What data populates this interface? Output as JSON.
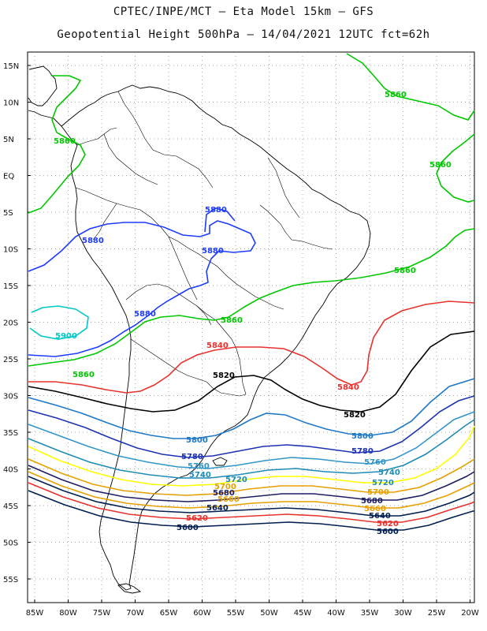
{
  "header": {
    "line1": "CPTEC/INPE/MCT –  Eta Model 15km – GFS",
    "line2": "Geopotential Height 500hPa – 14/04/2021 12UTC fct=62h"
  },
  "axes": {
    "lat_ticks": [
      "15N",
      "10N",
      "5N",
      "EQ",
      "5S",
      "10S",
      "15S",
      "20S",
      "25S",
      "30S",
      "35S",
      "40S",
      "45S",
      "50S",
      "55S"
    ],
    "lon_ticks": [
      "85W",
      "80W",
      "75W",
      "70W",
      "65W",
      "60W",
      "55W",
      "50W",
      "45W",
      "40W",
      "35W",
      "30W",
      "25W",
      "20W"
    ]
  },
  "colors": {
    "c5900": "#00c8c8",
    "c5880": "#1e3cff",
    "c5860": "#00c800",
    "c5840": "#e8322e",
    "c5820": "#000000",
    "c5800": "#1e78c8",
    "c5780": "#1e32b4",
    "c5760": "#3296c8",
    "c5740": "#1e8cb4",
    "c5720": "#ffff00",
    "c5700": "#e6a000",
    "c5680": "#1e1e64",
    "c5660": "#e6a000",
    "c5640": "#001e50",
    "c5620": "#e8322e",
    "c5600": "#001e50"
  },
  "contour_labels": {
    "l5860_a": "5860",
    "l5860_b": "5860",
    "l5860_c": "5860",
    "l5860_d": "5860",
    "l5860_e": "5860",
    "l5860_f": "5860",
    "l5880_a": "5880",
    "l5880_b": "5880",
    "l5880_c": "5880",
    "l5880_d": "5880",
    "l5900": "5900",
    "l5840_a": "5840",
    "l5840_b": "5840",
    "l5820_a": "5820",
    "l5820_b": "5820",
    "l5800_a": "5800",
    "l5800_b": "5800",
    "l5780_a": "5780",
    "l5780_b": "5780",
    "l5760_a": "5760",
    "l5760_b": "5760",
    "l5740_a": "5740",
    "l5740_b": "5740",
    "l5720_a": "5720",
    "l5720_b": "5720",
    "l5700_a": "5700",
    "l5700_b": "5700",
    "l5680_a": "5680",
    "l5680_b": "5680",
    "l5660_a": "5660",
    "l5660_b": "5660",
    "l5640_a": "5640",
    "l5640_b": "5640",
    "l5620_a": "5620",
    "l5620_b": "5620",
    "l5600_a": "5600",
    "l5600_b": "5600"
  }
}
